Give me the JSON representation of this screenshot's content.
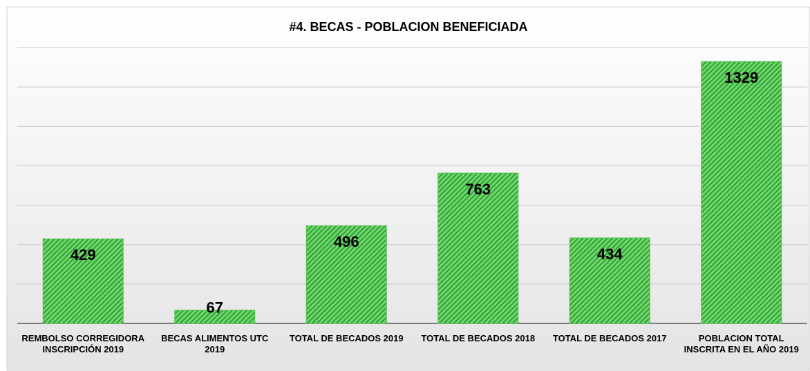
{
  "chart_data": {
    "type": "bar",
    "title": "#4. BECAS - POBLACION BENEFICIADA",
    "categories": [
      "REMBOLSO CORREGIDORA INSCRIPCIÓN 2019",
      "BECAS ALIMENTOS UTC 2019",
      "TOTAL DE BECADOS 2019",
      "TOTAL DE BECADOS 2018",
      "TOTAL DE BECADOS 2017",
      "POBLACION TOTAL INSCRITA EN EL AÑO 2019"
    ],
    "values": [
      429,
      67,
      496,
      763,
      434,
      1329
    ],
    "color": "#52c152",
    "ylim": [
      0,
      1400
    ],
    "yticks": [
      0,
      200,
      400,
      600,
      800,
      1000,
      1200,
      1400
    ],
    "grid": true
  }
}
